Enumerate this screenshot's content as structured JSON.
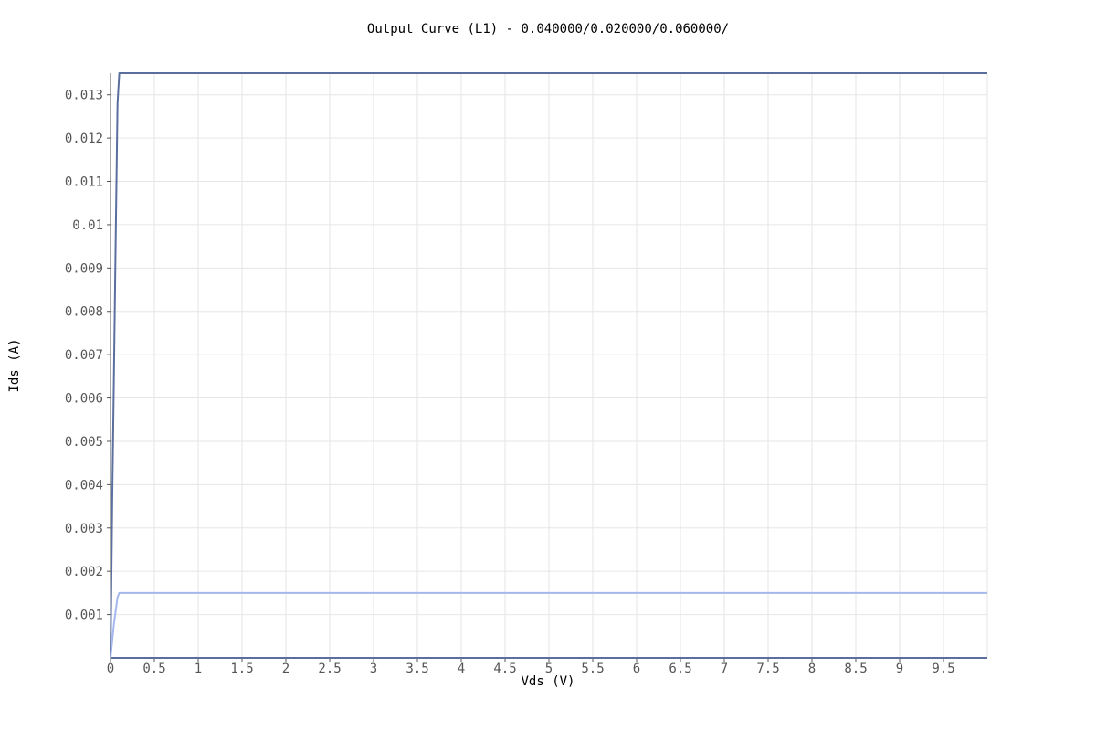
{
  "chart_data": {
    "type": "line",
    "title": "Output Curve (L1) - 0.040000/0.020000/0.060000/",
    "xlabel": "Vds (V)",
    "ylabel": "Ids (A)",
    "xlim": [
      0,
      10
    ],
    "ylim": [
      0,
      0.0135
    ],
    "grid": true,
    "legend": "none",
    "x_ticks": [
      "0",
      "0.5",
      "1",
      "1.5",
      "2",
      "2.5",
      "3",
      "3.5",
      "4",
      "4.5",
      "5",
      "5.5",
      "6",
      "6.5",
      "7",
      "7.5",
      "8",
      "8.5",
      "9",
      "9.5"
    ],
    "y_ticks": [
      "0.001",
      "0.002",
      "0.003",
      "0.004",
      "0.005",
      "0.006",
      "0.007",
      "0.008",
      "0.009",
      "0.01",
      "0.011",
      "0.012",
      "0.013"
    ],
    "series": [
      {
        "color": "#5a6f9e",
        "x": [
          0,
          0.02,
          0.04,
          0.06,
          0.08,
          0.1,
          10
        ],
        "y": [
          0,
          0.0037,
          0.0067,
          0.0098,
          0.0128,
          0.0135,
          0.0135
        ]
      },
      {
        "color": "#a4b8ee",
        "x": [
          0,
          0.02,
          0.04,
          0.06,
          0.08,
          0.1,
          10
        ],
        "y": [
          0,
          0.0004,
          0.0008,
          0.0011,
          0.0014,
          0.0015,
          0.0015
        ]
      },
      {
        "color": "#5a6f9e",
        "x": [
          0,
          10
        ],
        "y": [
          0,
          0
        ]
      }
    ]
  },
  "colors": {
    "grid": "#e6e6e6",
    "axis": "#555555",
    "background": "#ffffff"
  }
}
